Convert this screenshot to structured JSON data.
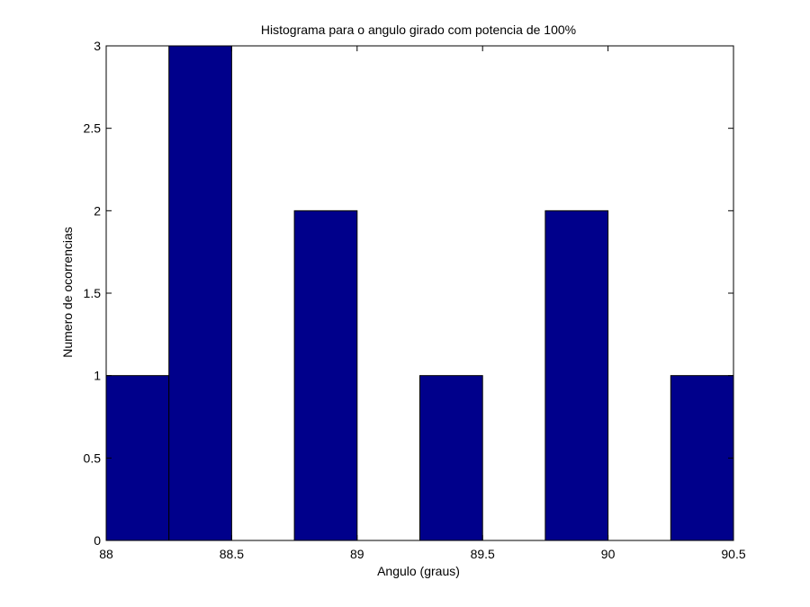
{
  "chart_data": {
    "type": "bar",
    "title": "Histograma para o angulo girado com potencia de 100%",
    "xlabel": "Angulo (graus)",
    "ylabel": "Numero de ocorrencias",
    "xlim": [
      88,
      90.5
    ],
    "ylim": [
      0,
      3
    ],
    "bins": [
      {
        "x0": 88.0,
        "x1": 88.25,
        "count": 1
      },
      {
        "x0": 88.25,
        "x1": 88.5,
        "count": 3
      },
      {
        "x0": 88.5,
        "x1": 88.75,
        "count": 0
      },
      {
        "x0": 88.75,
        "x1": 89.0,
        "count": 2
      },
      {
        "x0": 89.0,
        "x1": 89.25,
        "count": 0
      },
      {
        "x0": 89.25,
        "x1": 89.5,
        "count": 1
      },
      {
        "x0": 89.5,
        "x1": 89.75,
        "count": 0
      },
      {
        "x0": 89.75,
        "x1": 90.0,
        "count": 2
      },
      {
        "x0": 90.0,
        "x1": 90.25,
        "count": 0
      },
      {
        "x0": 90.25,
        "x1": 90.5,
        "count": 1
      }
    ],
    "xticks": [
      {
        "value": 88,
        "label": "88"
      },
      {
        "value": 88.5,
        "label": "88.5"
      },
      {
        "value": 89,
        "label": "89"
      },
      {
        "value": 89.5,
        "label": "89.5"
      },
      {
        "value": 90,
        "label": "90"
      },
      {
        "value": 90.5,
        "label": "90.5"
      }
    ],
    "yticks": [
      {
        "value": 0,
        "label": "0"
      },
      {
        "value": 0.5,
        "label": "0.5"
      },
      {
        "value": 1,
        "label": "1"
      },
      {
        "value": 1.5,
        "label": "1.5"
      },
      {
        "value": 2,
        "label": "2"
      },
      {
        "value": 2.5,
        "label": "2.5"
      },
      {
        "value": 3,
        "label": "3"
      }
    ],
    "grid": false,
    "bar_color": "#00008b",
    "bar_edge_color": "#000000"
  }
}
